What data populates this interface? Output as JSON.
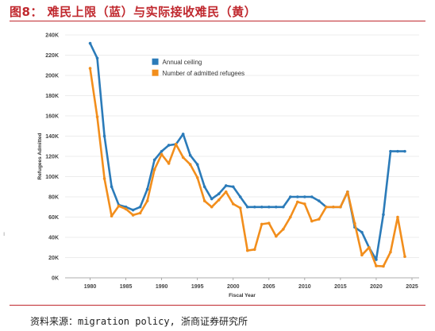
{
  "header": {
    "title": "图8： 难民上限（蓝）与实际接收难民（黄）"
  },
  "footer": {
    "source": "资料来源：migration policy, 浙商证券研究所"
  },
  "side_mark": "ı",
  "colors": {
    "annual_ceiling": "#2b7bb9",
    "admitted": "#f28e1c",
    "accent": "#c0282e"
  },
  "chart_data": {
    "type": "line",
    "title": "",
    "xlabel": "Fiscal Year",
    "ylabel": "Refugees Admitted",
    "xlim": [
      1976.5,
      2026
    ],
    "ylim": [
      0,
      240000
    ],
    "x_ticks": [
      1980,
      1985,
      1990,
      1995,
      2000,
      2005,
      2010,
      2015,
      2020,
      2025
    ],
    "y_ticks": [
      0,
      20000,
      40000,
      60000,
      80000,
      100000,
      120000,
      140000,
      160000,
      180000,
      200000,
      220000,
      240000
    ],
    "y_tick_labels": [
      "0K",
      "20K",
      "40K",
      "60K",
      "80K",
      "100K",
      "120K",
      "140K",
      "160K",
      "180K",
      "200K",
      "220K",
      "240K"
    ],
    "grid": true,
    "legend_position": "top-center",
    "series": [
      {
        "name": "Annual ceiling",
        "color": "#2b7bb9",
        "x": [
          1980,
          1981,
          1982,
          1983,
          1984,
          1985,
          1986,
          1987,
          1988,
          1989,
          1990,
          1991,
          1992,
          1993,
          1994,
          1995,
          1996,
          1997,
          1998,
          1999,
          2000,
          2001,
          2002,
          2003,
          2004,
          2005,
          2006,
          2007,
          2008,
          2009,
          2010,
          2011,
          2012,
          2013,
          2014,
          2015,
          2016,
          2017,
          2018,
          2019,
          2020,
          2021,
          2022,
          2023,
          2024
        ],
        "values": [
          231700,
          217000,
          140000,
          90000,
          72000,
          70000,
          67000,
          70000,
          87500,
          116500,
          125000,
          131000,
          132000,
          142000,
          121000,
          112000,
          90000,
          78000,
          83000,
          91000,
          90000,
          80000,
          70000,
          70000,
          70000,
          70000,
          70000,
          70000,
          80000,
          80000,
          80000,
          80000,
          76000,
          70000,
          70000,
          70000,
          85000,
          50000,
          45000,
          30000,
          18000,
          62500,
          125000,
          125000,
          125000
        ]
      },
      {
        "name": "Number of admitted refugees",
        "color": "#f28e1c",
        "x": [
          1980,
          1981,
          1982,
          1983,
          1984,
          1985,
          1986,
          1987,
          1988,
          1989,
          1990,
          1991,
          1992,
          1993,
          1994,
          1995,
          1996,
          1997,
          1998,
          1999,
          2000,
          2001,
          2002,
          2003,
          2004,
          2005,
          2006,
          2007,
          2008,
          2009,
          2010,
          2011,
          2012,
          2013,
          2014,
          2015,
          2016,
          2017,
          2018,
          2019,
          2020,
          2021,
          2022,
          2023,
          2024
        ],
        "values": [
          207000,
          159000,
          98000,
          61000,
          71000,
          68000,
          62000,
          64000,
          76000,
          107000,
          122000,
          113000,
          132000,
          119000,
          112000,
          99000,
          76000,
          70000,
          77000,
          85000,
          73000,
          69000,
          27000,
          28000,
          53000,
          54000,
          41000,
          48000,
          60000,
          75000,
          73000,
          56000,
          58000,
          70000,
          70000,
          70000,
          84900,
          53700,
          22500,
          30000,
          11800,
          11400,
          25500,
          60000,
          21000
        ]
      }
    ]
  }
}
